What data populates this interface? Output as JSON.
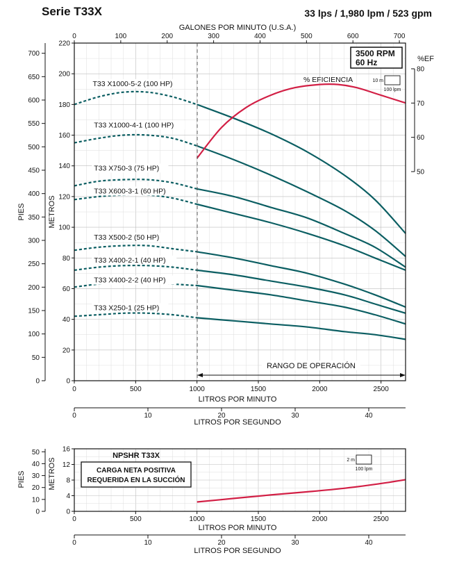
{
  "header": {
    "series_title": "Serie T33X",
    "spec": "33 lps / 1,980 lpm / 523 gpm"
  },
  "chart_data": [
    {
      "type": "line",
      "name_box": {
        "rpm": "3500 RPM",
        "hz": "60 Hz"
      },
      "top_axis_label": "GALONES POR MINUTO (U.S.A.)",
      "top_ticks": [
        0,
        100,
        200,
        300,
        400,
        500,
        600,
        700
      ],
      "xlabel": "LITROS POR MINUTO",
      "xlim": [
        0,
        2700
      ],
      "x_ticks": [
        0,
        500,
        1000,
        1500,
        2000,
        2500
      ],
      "x2label": "LITROS POR SEGUNDO",
      "x2_ticks": [
        0,
        10,
        20,
        30,
        40
      ],
      "ylabel": "METROS",
      "ylim": [
        0,
        220
      ],
      "y_ticks": [
        0,
        20,
        40,
        60,
        80,
        100,
        120,
        140,
        160,
        180,
        200,
        220
      ],
      "yleft_label": "PIES",
      "yleft_ticks": [
        0,
        50,
        100,
        150,
        200,
        250,
        300,
        350,
        400,
        450,
        500,
        550,
        600,
        650,
        700
      ],
      "yright_label": "%EF",
      "yright_ticks": [
        50,
        60,
        70,
        80
      ],
      "scale_key": {
        "head": "10 m",
        "flow": "100 lpm"
      },
      "operating_range": {
        "label": "RANGO DE OPERACIÓN",
        "from": 1000,
        "to": 2700
      },
      "efficiency": {
        "name": "% EFICIENCIA",
        "x": [
          1000,
          1200,
          1400,
          1600,
          1800,
          2000,
          2150,
          2300,
          2500,
          2700
        ],
        "y": [
          145,
          165,
          178,
          186,
          191,
          193,
          193,
          191,
          186,
          181
        ]
      },
      "series": [
        {
          "name": "T33 X1000-5-2 (100 HP)",
          "x": [
            0,
            200,
            400,
            600,
            800,
            1000,
            1300,
            1600,
            1900,
            2200,
            2450,
            2700
          ],
          "y": [
            180,
            185,
            188,
            188,
            185,
            180,
            171,
            161,
            149,
            134,
            118,
            96
          ],
          "label_x": 150,
          "label_y": 192
        },
        {
          "name": "T33 X1000-4-1 (100 HP)",
          "x": [
            0,
            200,
            400,
            600,
            800,
            1000,
            1300,
            1600,
            1900,
            2200,
            2450,
            2700
          ],
          "y": [
            155,
            158,
            160,
            160,
            158,
            153,
            144,
            134,
            123,
            111,
            98,
            81
          ],
          "label_x": 160,
          "label_y": 165
        },
        {
          "name": "T33 X750-3 (75 HP)",
          "x": [
            0,
            200,
            400,
            600,
            800,
            1000,
            1300,
            1600,
            1900,
            2200,
            2450,
            2700
          ],
          "y": [
            127,
            130,
            131,
            131,
            129,
            125,
            120,
            113,
            106,
            96,
            87,
            74
          ],
          "label_x": 160,
          "label_y": 137
        },
        {
          "name": "T33 X600-3-1 (60 HP)",
          "x": [
            0,
            200,
            400,
            600,
            800,
            1000,
            1300,
            1600,
            1900,
            2200,
            2450,
            2700
          ],
          "y": [
            118,
            120,
            121,
            121,
            119,
            115,
            109,
            103,
            96,
            88,
            80,
            72
          ],
          "label_x": 160,
          "label_y": 122
        },
        {
          "name": "T33 X500-2 (50 HP)",
          "x": [
            0,
            200,
            400,
            600,
            800,
            1000,
            1300,
            1600,
            1900,
            2200,
            2450,
            2700
          ],
          "y": [
            85,
            87,
            88,
            88,
            86,
            84,
            80,
            75,
            70,
            63,
            56,
            48
          ],
          "label_x": 160,
          "label_y": 92
        },
        {
          "name": "T33 X400-2-1 (40 HP)",
          "x": [
            0,
            200,
            400,
            600,
            800,
            1000,
            1300,
            1600,
            1900,
            2200,
            2450,
            2700
          ],
          "y": [
            72,
            74,
            75,
            75,
            74,
            72,
            69,
            65,
            61,
            56,
            50,
            44
          ],
          "label_x": 160,
          "label_y": 77
        },
        {
          "name": "T33 X400-2-2 (40 HP)",
          "x": [
            0,
            200,
            400,
            600,
            800,
            1000,
            1300,
            1600,
            1900,
            2200,
            2450,
            2700
          ],
          "y": [
            61,
            63,
            64,
            64,
            63,
            62,
            59,
            56,
            52,
            48,
            43,
            37
          ],
          "label_x": 160,
          "label_y": 64
        },
        {
          "name": "T33 X250-1 (25 HP)",
          "x": [
            0,
            200,
            400,
            600,
            800,
            1000,
            1300,
            1600,
            1900,
            2200,
            2450,
            2700
          ],
          "y": [
            42,
            43,
            44,
            44,
            43,
            41,
            39,
            37,
            35,
            32,
            30,
            27
          ],
          "label_x": 160,
          "label_y": 46
        }
      ]
    },
    {
      "type": "line",
      "title": "NPSHR T33X",
      "note_line1": "CARGA NETA POSITIVA",
      "note_line2": "REQUERIDA EN LA SUCCIÓN",
      "xlabel": "LITROS POR MINUTO",
      "xlim": [
        0,
        2700
      ],
      "x_ticks": [
        0,
        500,
        1000,
        1500,
        2000,
        2500
      ],
      "x2label": "LITROS POR SEGUNDO",
      "x2_ticks": [
        0,
        10,
        20,
        30,
        40
      ],
      "ylabel": "METROS",
      "ylim": [
        0,
        16
      ],
      "y_ticks": [
        0,
        4,
        8,
        12,
        16
      ],
      "yleft_label": "PIES",
      "yleft_ticks": [
        0,
        10,
        20,
        30,
        40,
        50
      ],
      "scale_key": {
        "head": "2 m",
        "flow": "100 lpm"
      },
      "series": [
        {
          "name": "NPSHR",
          "x": [
            1000,
            1300,
            1600,
            1900,
            2200,
            2450,
            2700
          ],
          "y": [
            2.4,
            3.3,
            4.2,
            5.0,
            5.9,
            6.9,
            8.1
          ]
        }
      ]
    }
  ]
}
